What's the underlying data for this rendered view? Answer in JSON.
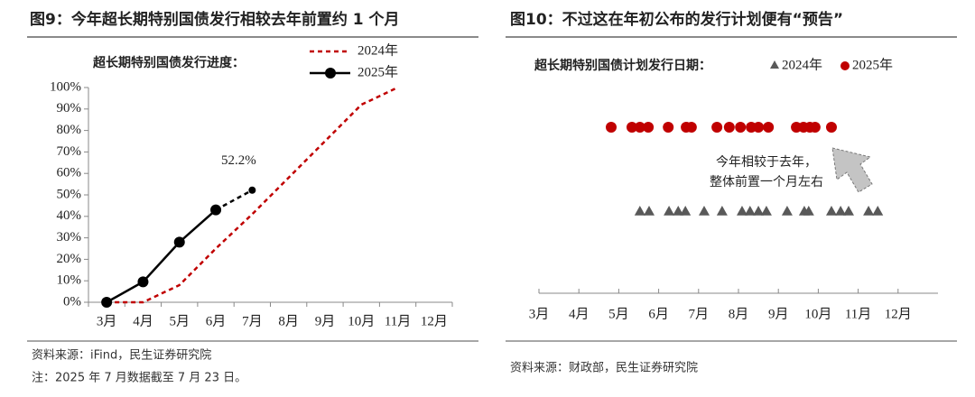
{
  "figures": [
    {
      "header": "图9：今年超长期特别国债发行相较去年前置约 1 个月",
      "source": "资料来源：iFind，民生证券研究院",
      "note": "注：2025 年 7 月数据截至 7 月 23 日。"
    },
    {
      "header": "图10：不过这在年初公布的发行计划便有“预告”",
      "source": "资料来源：财政部，民生证券研究院"
    }
  ],
  "chart_data": [
    {
      "type": "line",
      "title": "超长期特别国债发行进度：",
      "categories": [
        "3月",
        "4月",
        "5月",
        "6月",
        "7月",
        "8月",
        "9月",
        "10月",
        "11月",
        "12月"
      ],
      "series": [
        {
          "name": "2024年",
          "color": "#c00000",
          "line_style": "dashed",
          "values": [
            0,
            0,
            8,
            25,
            41,
            58,
            75,
            92,
            100,
            null
          ]
        },
        {
          "name": "2025年",
          "color": "#000000",
          "line_style": "solid",
          "last_segment_dashed": true,
          "values": [
            0,
            9.5,
            28,
            43,
            52.2,
            null,
            null,
            null,
            null,
            null
          ],
          "value_labels": [
            null,
            null,
            null,
            null,
            "52.2%",
            null,
            null,
            null,
            null,
            null
          ]
        }
      ],
      "ylim": [
        0,
        100
      ],
      "yticks": [
        {
          "value": 0,
          "label": "0%"
        },
        {
          "value": 10,
          "label": "10%"
        },
        {
          "value": 20,
          "label": "20%"
        },
        {
          "value": 30,
          "label": "30%"
        },
        {
          "value": 40,
          "label": "40%"
        },
        {
          "value": 50,
          "label": "50%"
        },
        {
          "value": 60,
          "label": "60%"
        },
        {
          "value": 70,
          "label": "70%"
        },
        {
          "value": 80,
          "label": "80%"
        },
        {
          "value": 90,
          "label": "90%"
        },
        {
          "value": 100,
          "label": "100%"
        }
      ],
      "grid": false,
      "legend": "upper right"
    },
    {
      "type": "strip",
      "title": "超长期特别国债计划发行日期：",
      "xlim": [
        3,
        13
      ],
      "xticks": [
        {
          "value": 3,
          "label": "3月"
        },
        {
          "value": 4,
          "label": "4月"
        },
        {
          "value": 5,
          "label": "5月"
        },
        {
          "value": 6,
          "label": "6月"
        },
        {
          "value": 7,
          "label": "7月"
        },
        {
          "value": 8,
          "label": "8月"
        },
        {
          "value": 9,
          "label": "9月"
        },
        {
          "value": 10,
          "label": "10月"
        },
        {
          "value": 11,
          "label": "11月"
        },
        {
          "value": 12,
          "label": "12月"
        }
      ],
      "series": [
        {
          "name": "2024年",
          "color": "#595959",
          "marker": "triangle",
          "x": [
            5.53,
            5.76,
            6.26,
            6.49,
            6.67,
            7.14,
            7.59,
            8.09,
            8.29,
            8.5,
            8.7,
            9.22,
            9.65,
            9.76,
            10.33,
            10.56,
            10.76,
            11.26,
            11.49
          ]
        },
        {
          "name": "2025年",
          "color": "#c00000",
          "marker": "circle",
          "x": [
            4.81,
            5.33,
            5.53,
            5.74,
            6.24,
            6.69,
            6.82,
            7.46,
            7.77,
            8.05,
            8.32,
            8.5,
            8.75,
            9.45,
            9.63,
            9.79,
            9.92,
            10.33
          ]
        }
      ],
      "annotation": [
        "今年相较于去年，",
        "整体前置一个月左右"
      ],
      "legend": "top"
    }
  ]
}
